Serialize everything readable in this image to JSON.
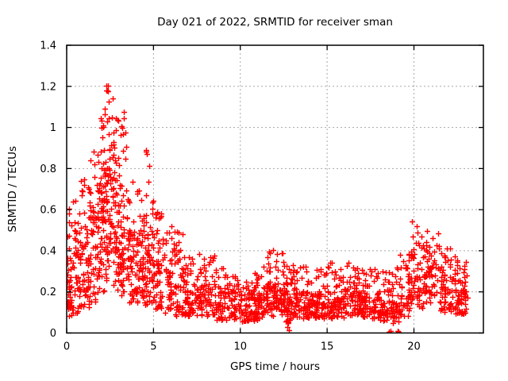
{
  "chart_data": {
    "type": "scatter",
    "title": "Day 021 of 2022, SRMTID for receiver sman",
    "xlabel": "GPS time / hours",
    "ylabel": "SRMTID / TECUs",
    "xlim": [
      0,
      24
    ],
    "ylim": [
      0,
      1.4
    ],
    "xtick_values": [
      0,
      5,
      10,
      15,
      20
    ],
    "xtick_labels": [
      "0",
      "5",
      "10",
      "15",
      "20"
    ],
    "ytick_values": [
      0,
      0.2,
      0.4,
      0.6,
      0.8,
      1.0,
      1.2,
      1.4
    ],
    "ytick_labels": [
      "0",
      "0.2",
      "0.4",
      "0.6",
      "0.8",
      "1",
      "1.2",
      "1.4"
    ],
    "grid": "dotted-major",
    "legend": "none",
    "marker": "plus",
    "marker_color": "#ff0000",
    "grid_color": "#a8a8a8",
    "border_color": "#000000",
    "text_color": "#000000",
    "background_color": "#ffffff",
    "series_name": "SRMTID",
    "peak": {
      "x": 2.3,
      "y": 1.24
    },
    "points_profile": {
      "columns": [
        "x_start",
        "x_end",
        "count",
        "y_min",
        "y_typical_top",
        "y_max"
      ],
      "segments": [
        [
          0.0,
          0.3,
          45,
          0.08,
          0.33,
          0.65
        ],
        [
          0.3,
          0.8,
          50,
          0.09,
          0.45,
          0.71
        ],
        [
          0.8,
          1.3,
          55,
          0.12,
          0.5,
          0.8
        ],
        [
          1.3,
          1.8,
          60,
          0.15,
          0.55,
          0.9
        ],
        [
          1.8,
          2.2,
          65,
          0.2,
          0.68,
          1.08
        ],
        [
          2.2,
          2.7,
          85,
          0.25,
          0.8,
          1.245
        ],
        [
          2.7,
          3.1,
          60,
          0.2,
          0.62,
          1.05
        ],
        [
          3.1,
          3.5,
          55,
          0.18,
          0.55,
          1.1
        ],
        [
          3.5,
          4.0,
          55,
          0.15,
          0.45,
          0.78
        ],
        [
          4.0,
          4.5,
          55,
          0.12,
          0.4,
          0.7
        ],
        [
          4.5,
          5.1,
          65,
          0.12,
          0.48,
          0.9
        ],
        [
          5.1,
          5.6,
          50,
          0.1,
          0.35,
          0.62
        ],
        [
          5.6,
          6.2,
          50,
          0.1,
          0.3,
          0.55
        ],
        [
          6.2,
          6.8,
          50,
          0.08,
          0.27,
          0.53
        ],
        [
          6.8,
          7.5,
          55,
          0.08,
          0.22,
          0.4
        ],
        [
          7.5,
          8.5,
          70,
          0.08,
          0.22,
          0.42
        ],
        [
          8.5,
          9.5,
          70,
          0.06,
          0.18,
          0.32
        ],
        [
          9.5,
          10.5,
          75,
          0.05,
          0.16,
          0.28
        ],
        [
          10.5,
          11.3,
          70,
          0.06,
          0.18,
          0.3
        ],
        [
          11.3,
          12.0,
          70,
          0.08,
          0.22,
          0.42
        ],
        [
          12.0,
          12.6,
          60,
          0.08,
          0.22,
          0.4
        ],
        [
          12.6,
          13.0,
          45,
          0.05,
          0.18,
          0.33
        ],
        [
          13.0,
          14.0,
          80,
          0.07,
          0.18,
          0.33
        ],
        [
          14.0,
          15.0,
          80,
          0.07,
          0.17,
          0.32
        ],
        [
          15.0,
          16.0,
          80,
          0.07,
          0.18,
          0.35
        ],
        [
          16.0,
          17.0,
          80,
          0.08,
          0.2,
          0.36
        ],
        [
          17.0,
          18.0,
          75,
          0.07,
          0.18,
          0.32
        ],
        [
          18.0,
          18.6,
          45,
          0.06,
          0.16,
          0.3
        ],
        [
          18.6,
          19.2,
          45,
          0.05,
          0.16,
          0.32
        ],
        [
          19.2,
          19.8,
          45,
          0.08,
          0.22,
          0.4
        ],
        [
          19.8,
          20.6,
          60,
          0.12,
          0.35,
          0.545
        ],
        [
          20.6,
          21.5,
          65,
          0.15,
          0.32,
          0.5
        ],
        [
          21.5,
          22.3,
          60,
          0.1,
          0.26,
          0.42
        ],
        [
          22.3,
          23.1,
          70,
          0.09,
          0.25,
          0.39
        ]
      ],
      "extra_points": [
        [
          12.72,
          0.03
        ],
        [
          12.78,
          0.015
        ],
        [
          18.58,
          0.005
        ],
        [
          18.62,
          0.0
        ],
        [
          18.66,
          0.01
        ],
        [
          19.02,
          0.0
        ],
        [
          19.06,
          0.01
        ],
        [
          19.1,
          0.005
        ]
      ]
    }
  }
}
